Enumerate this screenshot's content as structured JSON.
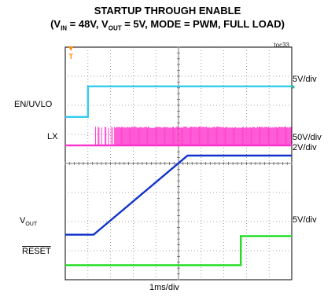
{
  "chart_data": {
    "type": "line",
    "title": "STARTUP THROUGH ENABLE",
    "subtitle": {
      "p1": "(V",
      "s1": "IN",
      "p2": " = 48V, V",
      "s2": "OUT",
      "p3": " = 5V, MODE = PWM, FULL LOAD)"
    },
    "tag": "toc33",
    "xlabel": "1ms/div",
    "grid": {
      "x_divisions": 10,
      "y_divisions": 8
    },
    "trigger_marker": "T",
    "x_unit": "div",
    "series": [
      {
        "name": "EN/UVLO",
        "scale": "5V/div",
        "color": "#33ccee",
        "points": [
          [
            0,
            5.6
          ],
          [
            1.0,
            5.6
          ],
          [
            1.0,
            6.65
          ],
          [
            10,
            6.65
          ]
        ]
      },
      {
        "name": "LX",
        "scale": "50V/div",
        "color": "#ff33cc",
        "baseline": 4.62,
        "burst_top": 5.27,
        "burst_start": 1.3,
        "burst_end": 10
      },
      {
        "name": "V",
        "name_sub": "OUT",
        "scale": "2V/div",
        "color": "#1133cc",
        "points": [
          [
            0,
            1.55
          ],
          [
            1.25,
            1.55
          ],
          [
            5.4,
            4.27
          ],
          [
            10,
            4.27
          ]
        ]
      },
      {
        "name": "RESET",
        "scale": "5V/div",
        "color": "#22dd22",
        "points": [
          [
            0,
            0.5
          ],
          [
            7.75,
            0.5
          ],
          [
            7.75,
            1.5
          ],
          [
            10,
            1.5
          ]
        ]
      }
    ],
    "right_labels": [
      "5V/div",
      "50V/div",
      "2V/div",
      "5V/div"
    ]
  }
}
